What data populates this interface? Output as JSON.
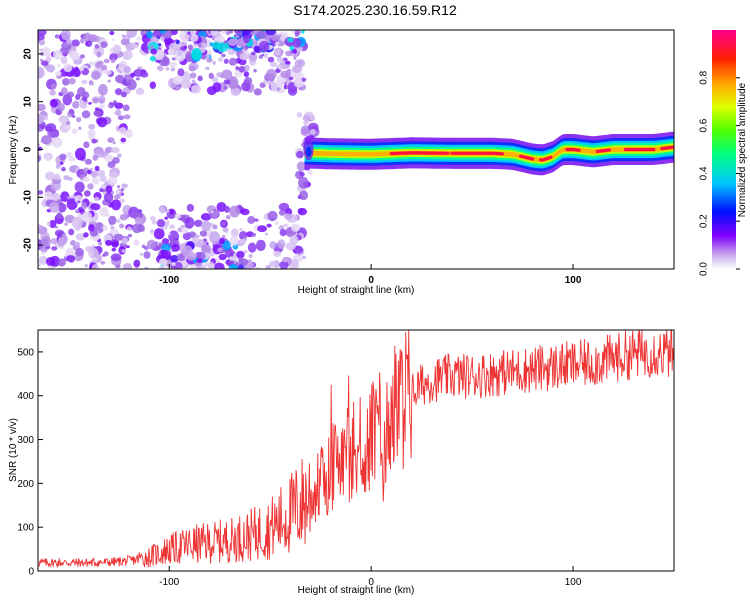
{
  "title": "S174.2025.230.16.59.R12",
  "chart_data": [
    {
      "type": "heatmap",
      "xlabel": "Height of straight line (km)",
      "ylabel": "Frequency (Hz)",
      "xlim": [
        -165,
        150
      ],
      "ylim": [
        -25,
        25
      ],
      "xticks": [
        -100,
        0,
        100
      ],
      "yticks": [
        -20,
        -10,
        0,
        10,
        20
      ],
      "colorbar": {
        "label": "Normalized spectral amplitude",
        "range": [
          0,
          1
        ],
        "ticks": [
          "0.0",
          "0.2",
          "0.4",
          "0.6",
          "0.8"
        ],
        "colors": [
          "#ffffff",
          "#b090e0",
          "#8000ff",
          "#0000ff",
          "#00d0ff",
          "#00ff60",
          "#c0ff00",
          "#ffc000",
          "#ff2000",
          "#ff0080"
        ]
      },
      "ridge": {
        "x": [
          -33,
          -20,
          0,
          20,
          40,
          60,
          70,
          75,
          80,
          85,
          90,
          95,
          100,
          110,
          120,
          130,
          140,
          150
        ],
        "y": [
          -0.7,
          -0.9,
          -1,
          -0.7,
          -0.8,
          -0.8,
          -1,
          -1.5,
          -2,
          -2.2,
          -1.5,
          0,
          0,
          -0.5,
          0,
          0,
          0,
          0.5
        ]
      }
    },
    {
      "type": "line",
      "xlabel": "Height of straight line (km)",
      "ylabel": "SNR (10 * v/v)",
      "xlim": [
        -165,
        150
      ],
      "ylim": [
        0,
        550
      ],
      "xticks": [
        -100,
        0,
        100
      ],
      "yticks": [
        0,
        100,
        200,
        300,
        400,
        500
      ],
      "line_color": "#ee3333",
      "series": [
        {
          "name": "SNR",
          "x": [
            -165,
            -150,
            -140,
            -130,
            -120,
            -110,
            -100,
            -90,
            -80,
            -70,
            -60,
            -50,
            -40,
            -35,
            -30,
            -25,
            -20,
            -15,
            -10,
            -5,
            0,
            5,
            10,
            15,
            20,
            25,
            30,
            40,
            50,
            60,
            70,
            80,
            90,
            100,
            110,
            120,
            130,
            140,
            150
          ],
          "values": [
            18,
            18,
            18,
            19,
            22,
            30,
            45,
            55,
            60,
            65,
            75,
            90,
            120,
            140,
            160,
            190,
            220,
            250,
            260,
            270,
            290,
            310,
            340,
            370,
            400,
            420,
            430,
            440,
            440,
            445,
            450,
            455,
            460,
            465,
            470,
            480,
            490,
            495,
            490
          ]
        }
      ]
    }
  ]
}
